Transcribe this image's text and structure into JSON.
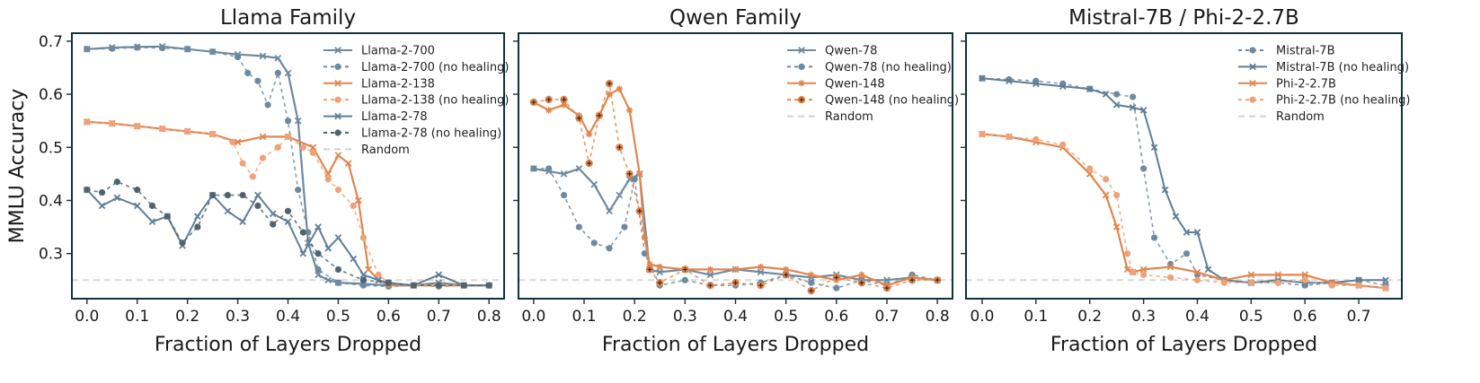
{
  "colors": {
    "blue": "#6e8aa0",
    "dark": "#4f6470",
    "steel": "#5f7f96",
    "orange": "#e0864f",
    "light_orange": "#eea27a",
    "random": "#d2d2d2",
    "frame": "#14303a"
  },
  "chart_data": [
    {
      "type": "line",
      "title": "Llama Family",
      "xlabel": "Fraction of Layers Dropped",
      "ylabel": "MMLU Accuracy",
      "xlim": [
        -0.03,
        0.83
      ],
      "ylim": [
        0.215,
        0.715
      ],
      "xticks": [
        "0.0",
        "0.1",
        "0.2",
        "0.3",
        "0.4",
        "0.5",
        "0.6",
        "0.7",
        "0.8"
      ],
      "yticks": [
        "0.3",
        "0.4",
        "0.5",
        "0.6",
        "0.7"
      ],
      "legend_position": "top-right",
      "series": [
        {
          "name": "Llama-2-700",
          "color": "#6e8aa0",
          "dash": "",
          "marker": "x",
          "width": 2.2,
          "x": [
            0.0,
            0.05,
            0.1,
            0.15,
            0.2,
            0.25,
            0.3,
            0.35,
            0.38,
            0.4,
            0.42,
            0.44,
            0.46,
            0.48,
            0.5,
            0.55,
            0.6,
            0.65,
            0.7,
            0.75,
            0.8
          ],
          "y": [
            0.685,
            0.688,
            0.689,
            0.69,
            0.685,
            0.68,
            0.675,
            0.672,
            0.668,
            0.64,
            0.55,
            0.32,
            0.26,
            0.25,
            0.245,
            0.243,
            0.24,
            0.24,
            0.245,
            0.24,
            0.24
          ]
        },
        {
          "name": "Llama-2-700 (no healing)",
          "color": "#6e8aa0",
          "dash": "4,4",
          "marker": "dot",
          "width": 1.6,
          "x": [
            0.0,
            0.05,
            0.1,
            0.15,
            0.2,
            0.25,
            0.3,
            0.32,
            0.34,
            0.36,
            0.38,
            0.4,
            0.42,
            0.44,
            0.46,
            0.5,
            0.55,
            0.6,
            0.65,
            0.7,
            0.75,
            0.8
          ],
          "y": [
            0.685,
            0.686,
            0.688,
            0.687,
            0.685,
            0.68,
            0.67,
            0.64,
            0.625,
            0.58,
            0.64,
            0.55,
            0.42,
            0.34,
            0.27,
            0.245,
            0.24,
            0.238,
            0.24,
            0.238,
            0.24,
            0.24
          ]
        },
        {
          "name": "Llama-2-138",
          "color": "#e0864f",
          "dash": "",
          "marker": "x",
          "width": 2.2,
          "x": [
            0.0,
            0.05,
            0.1,
            0.15,
            0.2,
            0.25,
            0.3,
            0.35,
            0.4,
            0.45,
            0.48,
            0.5,
            0.52,
            0.54,
            0.56,
            0.58,
            0.6,
            0.65,
            0.7,
            0.75,
            0.8
          ],
          "y": [
            0.548,
            0.545,
            0.54,
            0.535,
            0.53,
            0.525,
            0.51,
            0.52,
            0.52,
            0.5,
            0.45,
            0.485,
            0.47,
            0.4,
            0.27,
            0.25,
            0.24,
            0.24,
            0.24,
            0.24,
            0.24
          ]
        },
        {
          "name": "Llama-2-138 (no healing)",
          "color": "#eea27a",
          "dash": "4,4",
          "marker": "dot",
          "width": 1.6,
          "x": [
            0.0,
            0.05,
            0.1,
            0.15,
            0.2,
            0.25,
            0.29,
            0.31,
            0.33,
            0.35,
            0.38,
            0.4,
            0.43,
            0.45,
            0.48,
            0.5,
            0.53,
            0.55,
            0.58,
            0.6,
            0.65,
            0.7,
            0.75,
            0.8
          ],
          "y": [
            0.548,
            0.545,
            0.54,
            0.535,
            0.53,
            0.525,
            0.51,
            0.47,
            0.445,
            0.48,
            0.5,
            0.52,
            0.5,
            0.49,
            0.44,
            0.42,
            0.39,
            0.33,
            0.26,
            0.245,
            0.24,
            0.24,
            0.24,
            0.24
          ]
        },
        {
          "name": "Llama-2-78",
          "color": "#5f7f96",
          "dash": "",
          "marker": "x",
          "width": 2.0,
          "x": [
            0.0,
            0.03,
            0.06,
            0.1,
            0.13,
            0.16,
            0.19,
            0.22,
            0.25,
            0.28,
            0.31,
            0.34,
            0.37,
            0.4,
            0.43,
            0.46,
            0.48,
            0.5,
            0.53,
            0.55,
            0.58,
            0.6,
            0.65,
            0.7,
            0.75,
            0.8
          ],
          "y": [
            0.42,
            0.39,
            0.405,
            0.39,
            0.36,
            0.37,
            0.315,
            0.37,
            0.41,
            0.38,
            0.36,
            0.41,
            0.375,
            0.36,
            0.3,
            0.35,
            0.31,
            0.33,
            0.29,
            0.26,
            0.25,
            0.245,
            0.24,
            0.26,
            0.24,
            0.24
          ]
        },
        {
          "name": "Llama-2-78 (no healing)",
          "color": "#4f6470",
          "dash": "4,4",
          "marker": "dot",
          "width": 1.6,
          "x": [
            0.0,
            0.03,
            0.06,
            0.1,
            0.13,
            0.16,
            0.19,
            0.22,
            0.25,
            0.28,
            0.31,
            0.34,
            0.37,
            0.4,
            0.43,
            0.46,
            0.5,
            0.55,
            0.6,
            0.65,
            0.7,
            0.75,
            0.8
          ],
          "y": [
            0.42,
            0.415,
            0.435,
            0.42,
            0.39,
            0.37,
            0.32,
            0.35,
            0.41,
            0.41,
            0.41,
            0.39,
            0.355,
            0.38,
            0.34,
            0.3,
            0.27,
            0.25,
            0.245,
            0.24,
            0.24,
            0.24,
            0.24
          ]
        },
        {
          "name": "Random",
          "color": "#d2d2d2",
          "dash": "7,5",
          "marker": "none",
          "width": 2.0,
          "x": [
            -0.03,
            0.83
          ],
          "y": [
            0.25,
            0.25
          ]
        }
      ]
    },
    {
      "type": "line",
      "title": "Qwen Family",
      "xlabel": "Fraction of Layers Dropped",
      "ylabel": "",
      "xlim": [
        -0.03,
        0.83
      ],
      "ylim": [
        0.215,
        0.715
      ],
      "xticks": [
        "0.0",
        "0.1",
        "0.2",
        "0.3",
        "0.4",
        "0.5",
        "0.6",
        "0.7",
        "0.8"
      ],
      "yticks": [],
      "legend_position": "top-right",
      "series": [
        {
          "name": "Qwen-78",
          "color": "#6e8aa0",
          "dash": "",
          "marker": "x",
          "width": 2.2,
          "x": [
            0.0,
            0.03,
            0.06,
            0.09,
            0.12,
            0.15,
            0.17,
            0.19,
            0.21,
            0.23,
            0.25,
            0.3,
            0.35,
            0.4,
            0.45,
            0.5,
            0.55,
            0.6,
            0.65,
            0.7,
            0.75,
            0.8
          ],
          "y": [
            0.46,
            0.455,
            0.45,
            0.46,
            0.43,
            0.38,
            0.41,
            0.44,
            0.45,
            0.27,
            0.265,
            0.27,
            0.26,
            0.27,
            0.265,
            0.26,
            0.255,
            0.26,
            0.25,
            0.25,
            0.255,
            0.25
          ]
        },
        {
          "name": "Qwen-78 (no healing)",
          "color": "#6e8aa0",
          "dash": "4,4",
          "marker": "dot",
          "width": 1.6,
          "x": [
            0.0,
            0.03,
            0.06,
            0.09,
            0.12,
            0.15,
            0.18,
            0.2,
            0.22,
            0.25,
            0.3,
            0.35,
            0.4,
            0.45,
            0.5,
            0.55,
            0.6,
            0.65,
            0.7,
            0.75,
            0.8
          ],
          "y": [
            0.46,
            0.46,
            0.41,
            0.35,
            0.32,
            0.31,
            0.35,
            0.44,
            0.3,
            0.24,
            0.25,
            0.24,
            0.24,
            0.245,
            0.26,
            0.245,
            0.235,
            0.25,
            0.24,
            0.26,
            0.25
          ]
        },
        {
          "name": "Qwen-148",
          "color": "#e0864f",
          "dash": "",
          "marker": "star",
          "width": 2.2,
          "x": [
            0.0,
            0.03,
            0.06,
            0.09,
            0.11,
            0.13,
            0.15,
            0.17,
            0.19,
            0.21,
            0.22,
            0.23,
            0.25,
            0.3,
            0.35,
            0.4,
            0.45,
            0.5,
            0.55,
            0.6,
            0.65,
            0.7,
            0.75,
            0.8
          ],
          "y": [
            0.585,
            0.57,
            0.58,
            0.56,
            0.525,
            0.56,
            0.6,
            0.61,
            0.57,
            0.45,
            0.33,
            0.28,
            0.275,
            0.27,
            0.27,
            0.27,
            0.275,
            0.27,
            0.26,
            0.25,
            0.26,
            0.24,
            0.255,
            0.25
          ]
        },
        {
          "name": "Qwen-148 (no healing)",
          "color": "#e0864f",
          "dash": "4,4",
          "marker": "stardot",
          "width": 1.6,
          "x": [
            0.0,
            0.03,
            0.06,
            0.09,
            0.11,
            0.13,
            0.15,
            0.17,
            0.19,
            0.21,
            0.23,
            0.25,
            0.3,
            0.35,
            0.4,
            0.45,
            0.5,
            0.55,
            0.6,
            0.65,
            0.7,
            0.75,
            0.8
          ],
          "y": [
            0.585,
            0.59,
            0.59,
            0.555,
            0.47,
            0.56,
            0.62,
            0.5,
            0.45,
            0.38,
            0.27,
            0.245,
            0.27,
            0.24,
            0.245,
            0.24,
            0.26,
            0.23,
            0.255,
            0.245,
            0.235,
            0.25,
            0.25
          ]
        },
        {
          "name": "Random",
          "color": "#d2d2d2",
          "dash": "7,5",
          "marker": "none",
          "width": 2.0,
          "x": [
            -0.03,
            0.83
          ],
          "y": [
            0.25,
            0.25
          ]
        }
      ]
    },
    {
      "type": "line",
      "title": "Mistral-7B / Phi-2-2.7B",
      "xlabel": "Fraction of Layers Dropped",
      "ylabel": "",
      "xlim": [
        -0.03,
        0.78
      ],
      "ylim": [
        0.215,
        0.715
      ],
      "xticks": [
        "0.0",
        "0.1",
        "0.2",
        "0.3",
        "0.4",
        "0.5",
        "0.6",
        "0.7"
      ],
      "yticks": [],
      "legend_position": "top-right",
      "series": [
        {
          "name": "Mistral-7B",
          "color": "#6e8aa0",
          "dash": "4,4",
          "marker": "dot",
          "width": 1.6,
          "x": [
            0.0,
            0.05,
            0.1,
            0.15,
            0.2,
            0.25,
            0.28,
            0.3,
            0.32,
            0.35,
            0.38,
            0.4,
            0.45,
            0.5,
            0.55,
            0.6,
            0.65,
            0.7,
            0.75
          ],
          "y": [
            0.63,
            0.628,
            0.625,
            0.62,
            0.61,
            0.6,
            0.595,
            0.46,
            0.33,
            0.28,
            0.3,
            0.26,
            0.25,
            0.245,
            0.245,
            0.24,
            0.245,
            0.25,
            0.24
          ]
        },
        {
          "name": "Mistral-7B (no healing)",
          "color": "#5f7f96",
          "dash": "",
          "marker": "x",
          "width": 2.0,
          "x": [
            0.0,
            0.05,
            0.1,
            0.15,
            0.2,
            0.23,
            0.25,
            0.28,
            0.3,
            0.32,
            0.34,
            0.36,
            0.38,
            0.4,
            0.42,
            0.45,
            0.5,
            0.55,
            0.6,
            0.65,
            0.7,
            0.75
          ],
          "y": [
            0.63,
            0.625,
            0.62,
            0.615,
            0.61,
            0.6,
            0.58,
            0.575,
            0.57,
            0.5,
            0.42,
            0.37,
            0.34,
            0.34,
            0.27,
            0.25,
            0.245,
            0.25,
            0.245,
            0.245,
            0.25,
            0.25
          ]
        },
        {
          "name": "Phi-2-2.7B",
          "color": "#e0864f",
          "dash": "",
          "marker": "x",
          "width": 2.2,
          "x": [
            0.0,
            0.05,
            0.1,
            0.15,
            0.2,
            0.23,
            0.25,
            0.27,
            0.28,
            0.3,
            0.35,
            0.4,
            0.45,
            0.5,
            0.55,
            0.6,
            0.65,
            0.7,
            0.75
          ],
          "y": [
            0.525,
            0.52,
            0.51,
            0.5,
            0.45,
            0.41,
            0.35,
            0.27,
            0.265,
            0.27,
            0.275,
            0.265,
            0.25,
            0.26,
            0.26,
            0.26,
            0.245,
            0.24,
            0.235
          ]
        },
        {
          "name": "Phi-2-2.7B (no healing)",
          "color": "#eea27a",
          "dash": "4,4",
          "marker": "dot",
          "width": 1.6,
          "x": [
            0.0,
            0.05,
            0.1,
            0.15,
            0.2,
            0.23,
            0.25,
            0.27,
            0.28,
            0.3,
            0.35,
            0.4,
            0.45,
            0.5,
            0.55,
            0.6,
            0.65,
            0.7,
            0.75
          ],
          "y": [
            0.525,
            0.52,
            0.515,
            0.505,
            0.46,
            0.44,
            0.41,
            0.3,
            0.265,
            0.26,
            0.255,
            0.25,
            0.245,
            0.245,
            0.245,
            0.25,
            0.24,
            0.24,
            0.235
          ]
        },
        {
          "name": "Random",
          "color": "#d2d2d2",
          "dash": "7,5",
          "marker": "none",
          "width": 2.0,
          "x": [
            -0.03,
            0.78
          ],
          "y": [
            0.25,
            0.25
          ]
        }
      ]
    }
  ]
}
